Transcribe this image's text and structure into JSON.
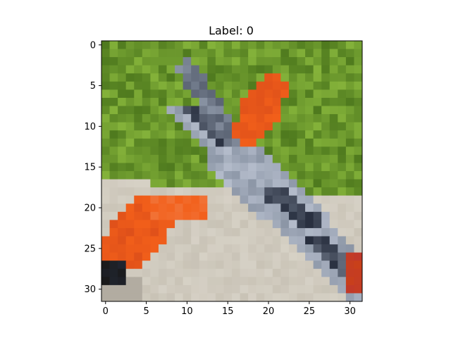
{
  "chart_data": {
    "type": "heatmap",
    "title": "Label: 0",
    "xlabel": "",
    "ylabel": "",
    "x_range": [
      -0.5,
      31.5
    ],
    "y_range": [
      -0.5,
      31.5
    ],
    "y_inverted": true,
    "grid": false,
    "x_ticks": [
      0,
      5,
      10,
      15,
      20,
      25,
      30
    ],
    "y_ticks": [
      0,
      5,
      10,
      15,
      20,
      25,
      30
    ],
    "image_size": [
      32,
      32
    ],
    "content": "32x32 RGB image of an orange and grey glider on grass",
    "palette": {
      "grass_dark": "#4f7a1e",
      "grass": "#6a9a2a",
      "grass_light": "#84b23a",
      "wing_orange": "#f25f1a",
      "wing_orange_dark": "#c9401a",
      "fuselage_grey": "#8c96a6",
      "fuselage_light": "#b4bccb",
      "fuselage_dark": "#232a3a",
      "ground": "#c9c3b6",
      "ground_light": "#d9d4c9"
    }
  }
}
